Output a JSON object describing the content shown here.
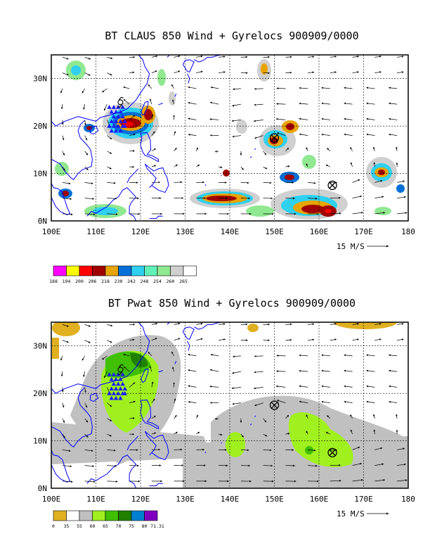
{
  "panels": [
    {
      "title": "BT CLAUS 850 Wind + Gyrelocs 900909/0000",
      "x_ticks": [
        "100E",
        "110E",
        "120E",
        "130E",
        "140E",
        "150E",
        "160E",
        "170E",
        "180"
      ],
      "y_ticks": [
        "0N",
        "10N",
        "20N",
        "30N"
      ],
      "vector_ref_label": "15 M/S",
      "colorbar_labels": [
        "188",
        "194",
        "200",
        "206",
        "218",
        "230",
        "242",
        "248",
        "254",
        "260",
        "265"
      ],
      "colorbar_colors": [
        "#ff00ff",
        "#ffff00",
        "#ff0000",
        "#a00000",
        "#e8a400",
        "#0070d8",
        "#30d0f0",
        "#60f0b8",
        "#90e890",
        "#d0d0d0",
        "#ffffff"
      ],
      "gyre_markers": [
        {
          "lon": 150,
          "lat": 17.5
        },
        {
          "lon": 163,
          "lat": 7.5
        }
      ],
      "storm_symbol": {
        "lon": 115.5,
        "lat": 25.0
      },
      "triangle_count": 22
    },
    {
      "title": "BT Pwat 850 Wind + Gyrelocs 900909/0000",
      "x_ticks": [
        "100E",
        "110E",
        "120E",
        "130E",
        "140E",
        "150E",
        "160E",
        "170E",
        "180"
      ],
      "y_ticks": [
        "0N",
        "10N",
        "20N",
        "30N"
      ],
      "vector_ref_label": "15 M/S",
      "colorbar_labels": [
        "0",
        "35",
        "55",
        "60",
        "65",
        "70",
        "75",
        "80",
        "71.31"
      ],
      "colorbar_colors": [
        "#e0b020",
        "#ffffff",
        "#c0c0c0",
        "#a0f020",
        "#40c000",
        "#208000",
        "#0080d0",
        "#8000c0"
      ],
      "gyre_markers": [
        {
          "lon": 150,
          "lat": 17.5
        },
        {
          "lon": 163,
          "lat": 7.5
        }
      ],
      "storm_symbol": {
        "lon": 115.5,
        "lat": 25.0
      },
      "triangle_count": 22
    }
  ],
  "map": {
    "lon_range": [
      100,
      180
    ],
    "lat_range": [
      0,
      35
    ],
    "gridline_lons": [
      110,
      120,
      130,
      140,
      150,
      160,
      170
    ],
    "gridline_lats": [
      10,
      20,
      30
    ]
  },
  "colors": {
    "coastline": "#0000ff",
    "arrows": "#000000",
    "triangles": "#1a1aff"
  }
}
